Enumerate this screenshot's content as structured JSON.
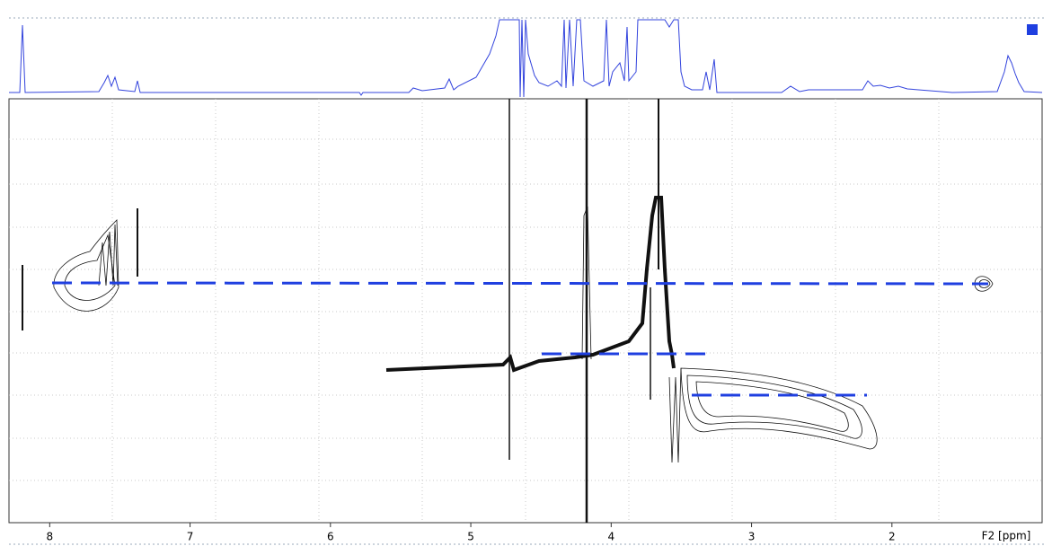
{
  "chart_data": {
    "type": "nmr",
    "x_label": "F2 [ppm]",
    "xlim": [
      8.29,
      0.93
    ],
    "xticks": [
      8,
      7,
      6,
      5,
      4,
      3,
      2
    ],
    "trace_color": "#3344dd"
  }
}
